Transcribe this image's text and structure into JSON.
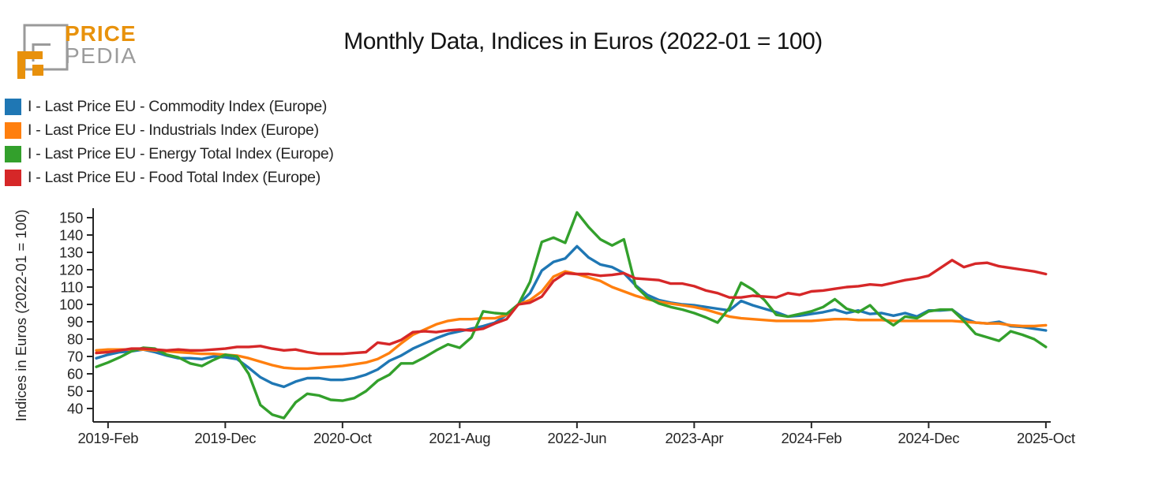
{
  "logo": {
    "word1": "PRICE",
    "word2": "PEDIA",
    "orange": "#e8910c",
    "gray": "#9a9a9a"
  },
  "header": {
    "title": "Monthly Data, Indices in Euros (2022-01 = 100)"
  },
  "legend": {
    "items": [
      {
        "label": "I - Last Price EU - Commodity Index (Europe)",
        "color": "#1f77b4"
      },
      {
        "label": "I - Last Price EU - Industrials Index (Europe)",
        "color": "#ff7f0e"
      },
      {
        "label": "I - Last Price EU - Energy Total Index (Europe)",
        "color": "#33a02c"
      },
      {
        "label": "I - Last Price EU - Food Total Index (Europe)",
        "color": "#d62728"
      }
    ]
  },
  "chart_data": {
    "type": "line",
    "title": "Monthly Data, Indices in Euros (2022-01 = 100)",
    "xlabel": "",
    "ylabel": "Indices in Euros (2022-01 = 100)",
    "ylim": [
      33,
      155
    ],
    "yticks": [
      40,
      50,
      60,
      70,
      80,
      90,
      100,
      110,
      120,
      130,
      140,
      150
    ],
    "xticks": [
      {
        "index": 1,
        "label": "2019-Feb"
      },
      {
        "index": 11,
        "label": "2019-Dec"
      },
      {
        "index": 21,
        "label": "2020-Oct"
      },
      {
        "index": 31,
        "label": "2021-Aug"
      },
      {
        "index": 41,
        "label": "2022-Jun"
      },
      {
        "index": 51,
        "label": "2023-Apr"
      },
      {
        "index": 61,
        "label": "2024-Feb"
      },
      {
        "index": 71,
        "label": "2024-Dec"
      },
      {
        "index": 81,
        "label": "2025-Oct"
      }
    ],
    "grid": false,
    "legend_position": "top-left",
    "months": [
      "2019-01",
      "2019-02",
      "2019-03",
      "2019-04",
      "2019-05",
      "2019-06",
      "2019-07",
      "2019-08",
      "2019-09",
      "2019-10",
      "2019-11",
      "2019-12",
      "2020-01",
      "2020-02",
      "2020-03",
      "2020-04",
      "2020-05",
      "2020-06",
      "2020-07",
      "2020-08",
      "2020-09",
      "2020-10",
      "2020-11",
      "2020-12",
      "2021-01",
      "2021-02",
      "2021-03",
      "2021-04",
      "2021-05",
      "2021-06",
      "2021-07",
      "2021-08",
      "2021-09",
      "2021-10",
      "2021-11",
      "2021-12",
      "2022-01",
      "2022-02",
      "2022-03",
      "2022-04",
      "2022-05",
      "2022-06",
      "2022-07",
      "2022-08",
      "2022-09",
      "2022-10",
      "2022-11",
      "2022-12",
      "2023-01",
      "2023-02",
      "2023-03",
      "2023-04",
      "2023-05",
      "2023-06",
      "2023-07",
      "2023-08",
      "2023-09",
      "2023-10",
      "2023-11",
      "2023-12",
      "2024-01",
      "2024-02",
      "2024-03",
      "2024-04",
      "2024-05",
      "2024-06",
      "2024-07",
      "2024-08",
      "2024-09",
      "2024-10",
      "2024-11",
      "2024-12",
      "2025-01",
      "2025-02",
      "2025-03",
      "2025-04",
      "2025-05",
      "2025-06",
      "2025-07",
      "2025-08",
      "2025-09",
      "2025-10"
    ],
    "series": [
      {
        "name": "I - Last Price EU - Commodity Index (Europe)",
        "color": "#1f77b4",
        "values": [
          69,
          71,
          72.5,
          73,
          74,
          72.5,
          70.5,
          69,
          69,
          68.5,
          70,
          69.5,
          68.5,
          63.5,
          58,
          54.5,
          52.5,
          55.5,
          57.5,
          57.5,
          56.5,
          56.5,
          57.5,
          59.5,
          62.5,
          67.5,
          70.5,
          74.5,
          77.5,
          80.5,
          83,
          84.5,
          86,
          87.5,
          89.5,
          94,
          100,
          106.5,
          119.5,
          124.5,
          126.5,
          133.5,
          127,
          123,
          121.5,
          118,
          111,
          105.5,
          102.5,
          101,
          100,
          99.5,
          98.5,
          97.5,
          96.5,
          102,
          99.5,
          97.5,
          95.5,
          93,
          93.5,
          94.5,
          95.5,
          97,
          95,
          96.5,
          94.5,
          95,
          93.5,
          95,
          93,
          96.5,
          96.5,
          97,
          92,
          89.5,
          89,
          90,
          87.5,
          87,
          86,
          85
        ]
      },
      {
        "name": "I - Last Price EU - Industrials Index (Europe)",
        "color": "#ff7f0e",
        "values": [
          73.5,
          74,
          74,
          74,
          74,
          73.5,
          73,
          72.5,
          72,
          71.5,
          71.5,
          71,
          70.5,
          69,
          67,
          65,
          63.5,
          63,
          63,
          63.5,
          64,
          64.5,
          65.5,
          66.5,
          68.5,
          72,
          77.5,
          82.5,
          85.5,
          88.5,
          90.5,
          91.5,
          91.5,
          92,
          92,
          94,
          100,
          102.5,
          107.5,
          116,
          119,
          117.5,
          115.5,
          113.5,
          110,
          107.5,
          105,
          103,
          101.5,
          100.5,
          99.5,
          98.5,
          97,
          95,
          93,
          92,
          91.5,
          91,
          90.5,
          90.5,
          90.5,
          90.5,
          91,
          91.5,
          91.5,
          91,
          91,
          91,
          90.5,
          90.5,
          90.5,
          90.5,
          90.5,
          90.5,
          90,
          89.5,
          89,
          89,
          88,
          87.5,
          87.5,
          88
        ]
      },
      {
        "name": "I - Last Price EU - Energy Total Index (Europe)",
        "color": "#33a02c",
        "values": [
          64,
          66.5,
          69.5,
          73,
          75,
          74.5,
          71,
          69.5,
          66,
          64.5,
          68,
          71,
          70,
          60,
          42,
          36.5,
          34.5,
          43.5,
          48.5,
          47.5,
          45,
          44.5,
          46,
          50,
          56,
          59.5,
          66,
          66,
          69.5,
          73.5,
          77,
          75,
          81,
          96,
          95,
          94.5,
          100,
          113,
          136,
          138.5,
          135.5,
          153,
          144.5,
          137.5,
          134,
          137.5,
          110.5,
          104,
          100.5,
          98.5,
          97,
          95,
          92.5,
          89.5,
          98,
          112.5,
          108.5,
          102.5,
          94,
          93,
          94.5,
          96,
          98.5,
          103,
          97.5,
          95.5,
          99.5,
          92.5,
          88,
          93,
          92,
          96,
          97,
          97,
          90.5,
          83,
          81,
          79,
          84.5,
          82.5,
          80,
          75.5
        ]
      },
      {
        "name": "I - Last Price EU - Food Total Index (Europe)",
        "color": "#d62728",
        "values": [
          72,
          72.5,
          73.5,
          74.5,
          74.5,
          74,
          73.5,
          74,
          73.5,
          73.5,
          74,
          74.5,
          75.5,
          75.5,
          76,
          74.5,
          73.5,
          74,
          72.5,
          71.5,
          71.5,
          71.5,
          72,
          72.5,
          78,
          77,
          79.5,
          84,
          84.5,
          84,
          85,
          85.5,
          85,
          86,
          89,
          91.5,
          100,
          101,
          104.5,
          113.5,
          118,
          117.5,
          117.5,
          116.5,
          117,
          118,
          115,
          114.5,
          114,
          112,
          112,
          110.5,
          108,
          106.5,
          104,
          104,
          105,
          104.5,
          104,
          106.5,
          105.5,
          107.5,
          108,
          109,
          110,
          110.5,
          111.5,
          111,
          112.5,
          114,
          115,
          116.5,
          121,
          125.5,
          121.5,
          123.5,
          124,
          122,
          121,
          120,
          119,
          117.5
        ]
      }
    ]
  }
}
